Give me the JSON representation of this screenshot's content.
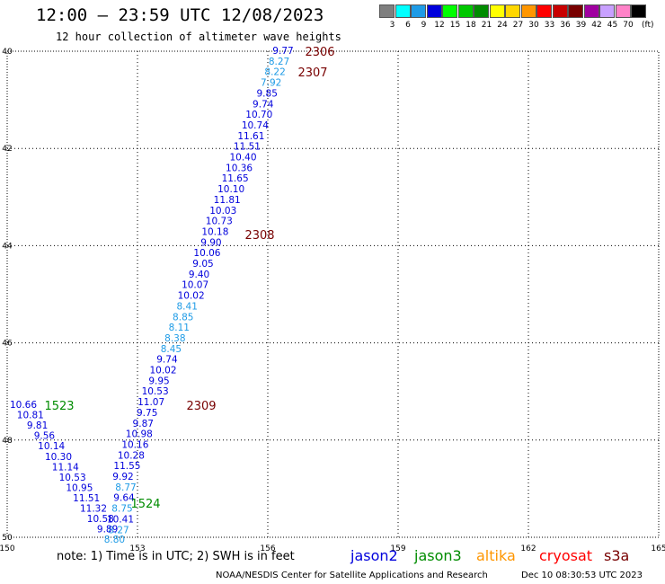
{
  "header": {
    "title": "12:00 – 23:59 UTC 12/08/2023",
    "subtitle": "12 hour collection of altimeter wave heights"
  },
  "legend": {
    "unit": "(ft)",
    "items": [
      {
        "label": "3",
        "color": "#7f7f7f"
      },
      {
        "label": "6",
        "color": "#00ffff"
      },
      {
        "label": "9",
        "color": "#1e9be6"
      },
      {
        "label": "12",
        "color": "#0000dc"
      },
      {
        "label": "15",
        "color": "#00ff00"
      },
      {
        "label": "18",
        "color": "#00c800"
      },
      {
        "label": "21",
        "color": "#008c00"
      },
      {
        "label": "24",
        "color": "#ffff00"
      },
      {
        "label": "27",
        "color": "#ffd700"
      },
      {
        "label": "30",
        "color": "#ff9600"
      },
      {
        "label": "33",
        "color": "#ff0000"
      },
      {
        "label": "36",
        "color": "#c80000"
      },
      {
        "label": "39",
        "color": "#780000"
      },
      {
        "label": "42",
        "color": "#a000a0"
      },
      {
        "label": "45",
        "color": "#c8a0ff"
      },
      {
        "label": "70",
        "color": "#ff82c8"
      },
      {
        "label": "",
        "color": "#000000"
      }
    ]
  },
  "map": {
    "lon_ticks": [
      "150",
      "153",
      "156",
      "159",
      "162",
      "165"
    ],
    "lat_ticks": [
      "40",
      "42",
      "44",
      "46",
      "48",
      "50"
    ],
    "track_labels": [
      {
        "text": "2306",
        "color": "#780000"
      },
      {
        "text": "2307",
        "color": "#780000"
      },
      {
        "text": "2308",
        "color": "#780000"
      },
      {
        "text": "2309",
        "color": "#780000"
      },
      {
        "text": "1523",
        "color": "#008c00"
      },
      {
        "text": "1524",
        "color": "#008c00"
      }
    ],
    "track_a_values": [
      {
        "v": "9.77",
        "c": "#0000dc"
      },
      {
        "v": "8.27",
        "c": "#1e9be6"
      },
      {
        "v": "8.22",
        "c": "#1e9be6"
      },
      {
        "v": "7.92",
        "c": "#1e9be6"
      },
      {
        "v": "9.85",
        "c": "#0000dc"
      },
      {
        "v": "9.74",
        "c": "#0000dc"
      },
      {
        "v": "10.70",
        "c": "#0000dc"
      },
      {
        "v": "10.74",
        "c": "#0000dc"
      },
      {
        "v": "11.61",
        "c": "#0000dc"
      },
      {
        "v": "11.51",
        "c": "#0000dc"
      },
      {
        "v": "10.40",
        "c": "#0000dc"
      },
      {
        "v": "10.36",
        "c": "#0000dc"
      },
      {
        "v": "11.65",
        "c": "#0000dc"
      },
      {
        "v": "10.10",
        "c": "#0000dc"
      },
      {
        "v": "11.81",
        "c": "#0000dc"
      },
      {
        "v": "10.03",
        "c": "#0000dc"
      },
      {
        "v": "10.73",
        "c": "#0000dc"
      },
      {
        "v": "10.18",
        "c": "#0000dc"
      },
      {
        "v": "9.90",
        "c": "#0000dc"
      },
      {
        "v": "10.06",
        "c": "#0000dc"
      },
      {
        "v": "9.05",
        "c": "#0000dc"
      },
      {
        "v": "9.40",
        "c": "#0000dc"
      },
      {
        "v": "10.07",
        "c": "#0000dc"
      },
      {
        "v": "10.02",
        "c": "#0000dc"
      },
      {
        "v": "8.41",
        "c": "#1e9be6"
      },
      {
        "v": "8.85",
        "c": "#1e9be6"
      },
      {
        "v": "8.11",
        "c": "#1e9be6"
      },
      {
        "v": "8.38",
        "c": "#1e9be6"
      },
      {
        "v": "8.45",
        "c": "#1e9be6"
      },
      {
        "v": "9.74",
        "c": "#0000dc"
      },
      {
        "v": "10.02",
        "c": "#0000dc"
      },
      {
        "v": "9.95",
        "c": "#0000dc"
      },
      {
        "v": "10.53",
        "c": "#0000dc"
      },
      {
        "v": "11.07",
        "c": "#0000dc"
      },
      {
        "v": "9.75",
        "c": "#0000dc"
      },
      {
        "v": "9.87",
        "c": "#0000dc"
      },
      {
        "v": "10.98",
        "c": "#0000dc"
      },
      {
        "v": "10.16",
        "c": "#0000dc"
      },
      {
        "v": "10.28",
        "c": "#0000dc"
      },
      {
        "v": "11.55",
        "c": "#0000dc"
      },
      {
        "v": "9.92",
        "c": "#0000dc"
      },
      {
        "v": "8.77",
        "c": "#1e9be6"
      },
      {
        "v": "9.64",
        "c": "#0000dc"
      },
      {
        "v": "8.75",
        "c": "#1e9be6"
      },
      {
        "v": "10.41",
        "c": "#0000dc"
      },
      {
        "v": "8.27",
        "c": "#1e9be6"
      }
    ],
    "track_b_values": [
      {
        "v": "10.66",
        "c": "#0000dc"
      },
      {
        "v": "10.81",
        "c": "#0000dc"
      },
      {
        "v": "9.81",
        "c": "#0000dc"
      },
      {
        "v": "9.56",
        "c": "#0000dc"
      },
      {
        "v": "10.14",
        "c": "#0000dc"
      },
      {
        "v": "10.30",
        "c": "#0000dc"
      },
      {
        "v": "11.14",
        "c": "#0000dc"
      },
      {
        "v": "10.53",
        "c": "#0000dc"
      },
      {
        "v": "10.95",
        "c": "#0000dc"
      },
      {
        "v": "11.51",
        "c": "#0000dc"
      },
      {
        "v": "11.32",
        "c": "#0000dc"
      },
      {
        "v": "10.58",
        "c": "#0000dc"
      },
      {
        "v": "9.89",
        "c": "#0000dc"
      },
      {
        "v": "8.80",
        "c": "#1e9be6"
      }
    ]
  },
  "footer": {
    "note": "note:  1) Time is in UTC;  2) SWH is in feet",
    "satellites": [
      {
        "name": "jason2",
        "color": "#0000dc"
      },
      {
        "name": "jason3",
        "color": "#008c00"
      },
      {
        "name": "altika",
        "color": "#ff9600"
      },
      {
        "name": "cryosat",
        "color": "#ff0000"
      },
      {
        "name": "s3a",
        "color": "#780000"
      }
    ],
    "credit": "NOAA/NESDIS Center for Satellite Applications and Research",
    "timestamp": "Dec 10 08:30:53 UTC 2023"
  }
}
